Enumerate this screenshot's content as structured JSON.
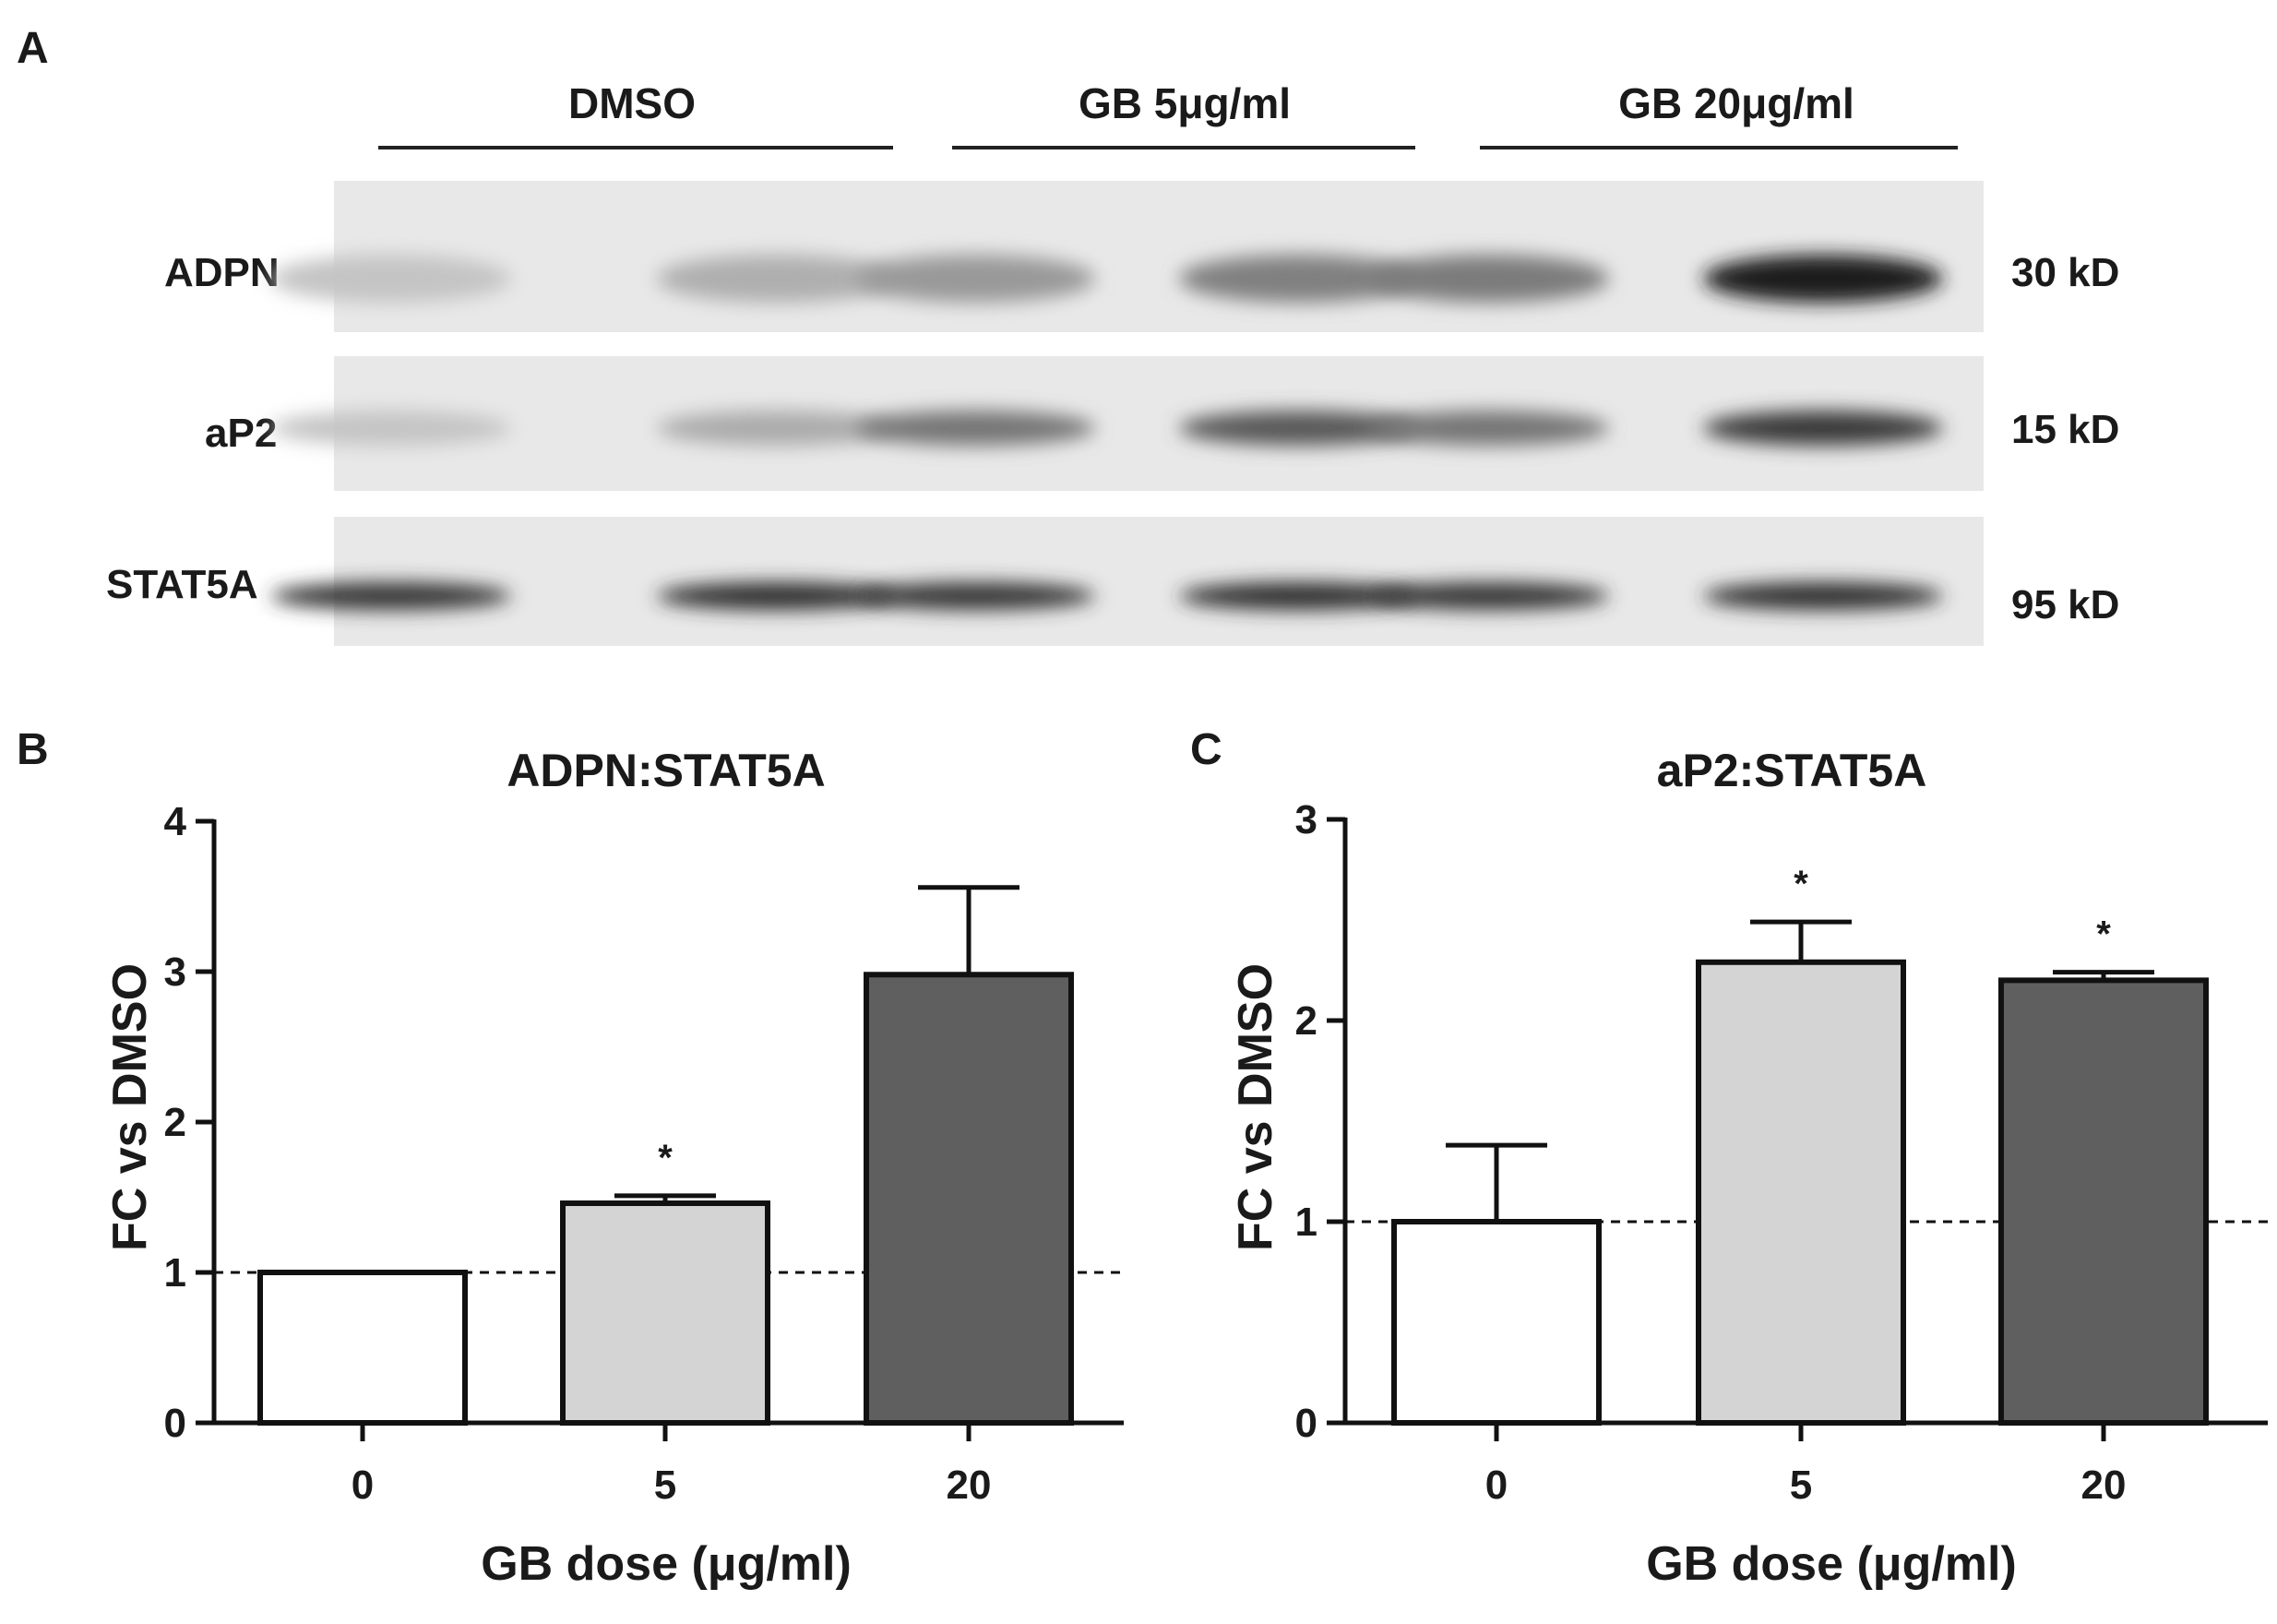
{
  "figure": {
    "panels": [
      "A",
      "B",
      "C"
    ]
  },
  "blot": {
    "groups": [
      {
        "label": "DMSO"
      },
      {
        "label": "GB 5μg/ml"
      },
      {
        "label": "GB 20μg/ml"
      }
    ],
    "rows": [
      {
        "label": "ADPN",
        "kd": "30 kD",
        "intensities": [
          0.18,
          0.28,
          0.38,
          0.5,
          0.52,
          0.95
        ]
      },
      {
        "label": "aP2",
        "kd": "15 kD",
        "intensities": [
          0.18,
          0.3,
          0.55,
          0.68,
          0.55,
          0.82
        ]
      },
      {
        "label": "STAT5A",
        "kd": "95 kD",
        "intensities": [
          0.85,
          0.88,
          0.85,
          0.88,
          0.85,
          0.88
        ]
      }
    ]
  },
  "chart_data": [
    {
      "type": "bar",
      "panel": "B",
      "title": "ADPN:STAT5A",
      "xlabel": "GB dose (μg/ml)",
      "ylabel": "FC vs  DMSO",
      "categories": [
        "0",
        "5",
        "20"
      ],
      "values": [
        1.0,
        1.46,
        2.98
      ],
      "errors": [
        0.0,
        0.05,
        0.58
      ],
      "significance": [
        "",
        "*",
        ""
      ],
      "bar_colors": [
        "#ffffff",
        "#d4d4d4",
        "#5f5f5f"
      ],
      "ylim": [
        0,
        4
      ],
      "yticks": [
        0,
        1,
        2,
        3,
        4
      ],
      "reference_line": 1,
      "grid": false
    },
    {
      "type": "bar",
      "panel": "C",
      "title": "aP2:STAT5A",
      "xlabel": "GB dose (μg/ml)",
      "ylabel": "FC vs  DMSO",
      "categories": [
        "0",
        "5",
        "20"
      ],
      "values": [
        1.0,
        2.29,
        2.2
      ],
      "errors": [
        0.38,
        0.2,
        0.04
      ],
      "significance": [
        "",
        "*",
        "*"
      ],
      "bar_colors": [
        "#ffffff",
        "#d4d4d4",
        "#5f5f5f"
      ],
      "ylim": [
        0,
        3
      ],
      "yticks": [
        0,
        1,
        2,
        3
      ],
      "reference_line": 1,
      "grid": false
    }
  ]
}
